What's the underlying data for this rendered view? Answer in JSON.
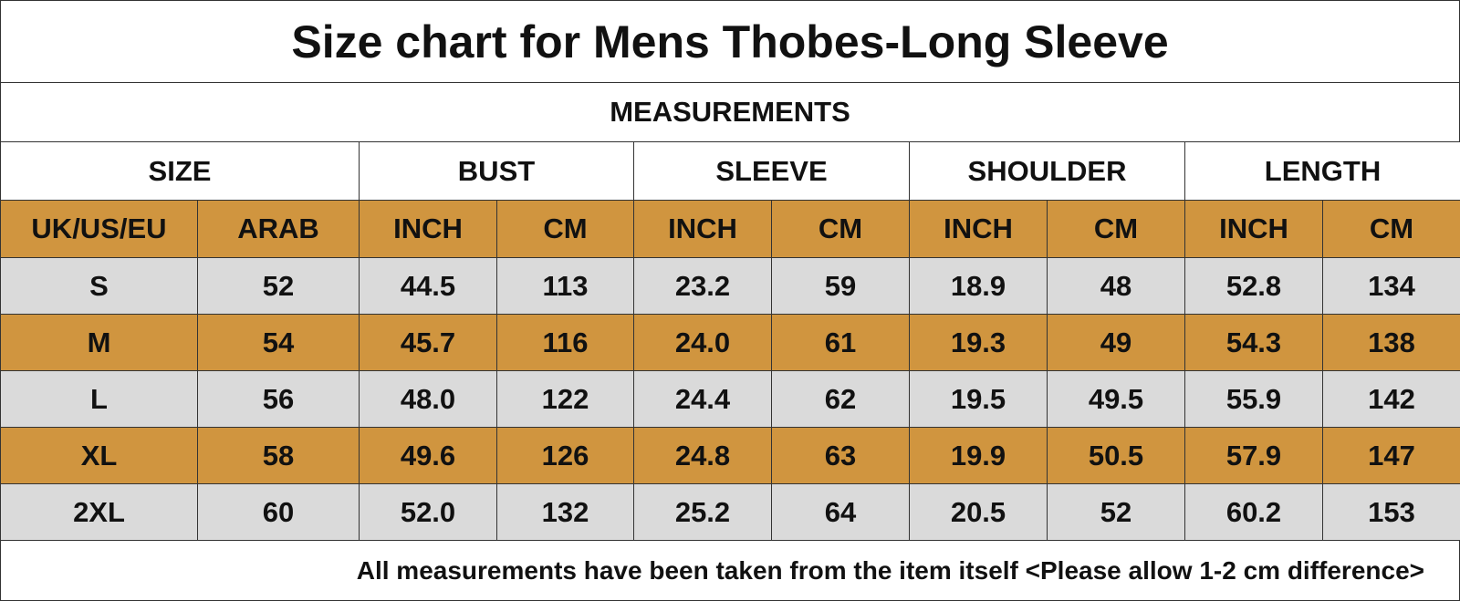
{
  "header": {
    "title": "Size chart for Mens Thobes-Long Sleeve",
    "subtitle": "MEASUREMENTS"
  },
  "table": {
    "groups": [
      "SIZE",
      "BUST",
      "SLEEVE",
      "SHOULDER",
      "LENGTH"
    ],
    "columns": [
      "UK/US/EU",
      "ARAB",
      "INCH",
      "CM",
      "INCH",
      "CM",
      "INCH",
      "CM",
      "INCH",
      "CM"
    ],
    "rows": [
      [
        "S",
        "52",
        "44.5",
        "113",
        "23.2",
        "59",
        "18.9",
        "48",
        "52.8",
        "134"
      ],
      [
        "M",
        "54",
        "45.7",
        "116",
        "24.0",
        "61",
        "19.3",
        "49",
        "54.3",
        "138"
      ],
      [
        "L",
        "56",
        "48.0",
        "122",
        "24.4",
        "62",
        "19.5",
        "49.5",
        "55.9",
        "142"
      ],
      [
        "XL",
        "58",
        "49.6",
        "126",
        "24.8",
        "63",
        "19.9",
        "50.5",
        "57.9",
        "147"
      ],
      [
        "2XL",
        "60",
        "52.0",
        "132",
        "25.2",
        "64",
        "20.5",
        "52",
        "60.2",
        "153"
      ]
    ]
  },
  "footer": "All measurements have been taken from the item itself <Please allow 1-2 cm difference>"
}
